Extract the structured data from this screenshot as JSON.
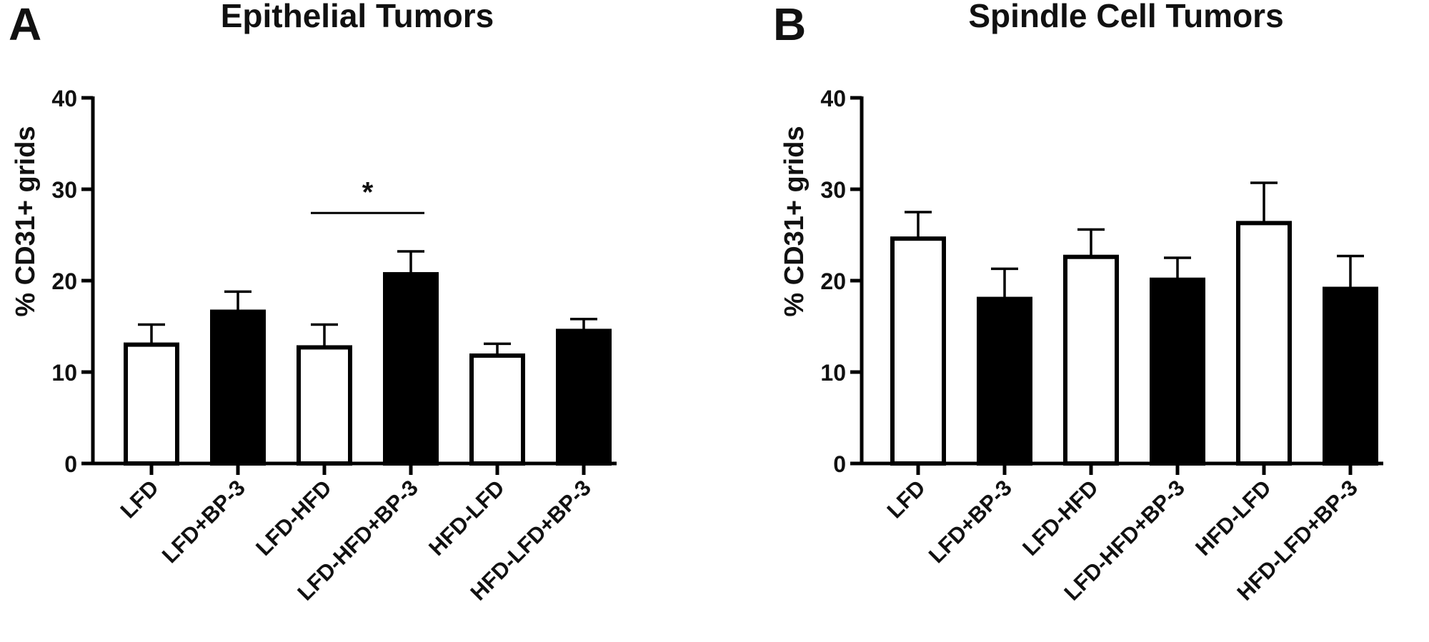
{
  "chart_data": [
    {
      "type": "bar",
      "panel_label": "A",
      "title": "Epithelial Tumors",
      "xlabel": "",
      "ylabel": "% CD31+ grids",
      "ylim": [
        0,
        40
      ],
      "yticks": [
        "0",
        "10",
        "20",
        "30",
        "40"
      ],
      "categories": [
        "LFD",
        "LFD+BP-3",
        "LFD-HFD",
        "LFD-HFD+BP-3",
        "HFD-LFD",
        "HFD-LFD+BP-3"
      ],
      "values": [
        13.0,
        16.6,
        12.7,
        20.7,
        11.8,
        14.5
      ],
      "errors": [
        2.2,
        2.2,
        2.5,
        2.5,
        1.3,
        1.3
      ],
      "fills": [
        "#ffffff",
        "#000000",
        "#ffffff",
        "#000000",
        "#ffffff",
        "#000000"
      ],
      "annotations": [
        {
          "text": "*",
          "from_category": 2,
          "to_category": 3,
          "y": 27.4
        }
      ]
    },
    {
      "type": "bar",
      "panel_label": "B",
      "title": "Spindle Cell Tumors",
      "xlabel": "",
      "ylabel": "% CD31+ grids",
      "ylim": [
        0,
        40
      ],
      "yticks": [
        "0",
        "10",
        "20",
        "30",
        "40"
      ],
      "categories": [
        "LFD",
        "LFD+BP-3",
        "LFD-HFD",
        "LFD-HFD+BP-3",
        "HFD-LFD",
        "HFD-LFD+BP-3"
      ],
      "values": [
        24.6,
        18.0,
        22.6,
        20.1,
        26.3,
        19.1
      ],
      "errors": [
        2.9,
        3.3,
        3.0,
        2.4,
        4.4,
        3.6
      ],
      "fills": [
        "#ffffff",
        "#000000",
        "#ffffff",
        "#000000",
        "#ffffff",
        "#000000"
      ],
      "annotations": []
    }
  ],
  "colors": {
    "axis": "#000000",
    "text": "#111111",
    "empty_fill": "#ffffff",
    "solid_fill": "#000000"
  }
}
